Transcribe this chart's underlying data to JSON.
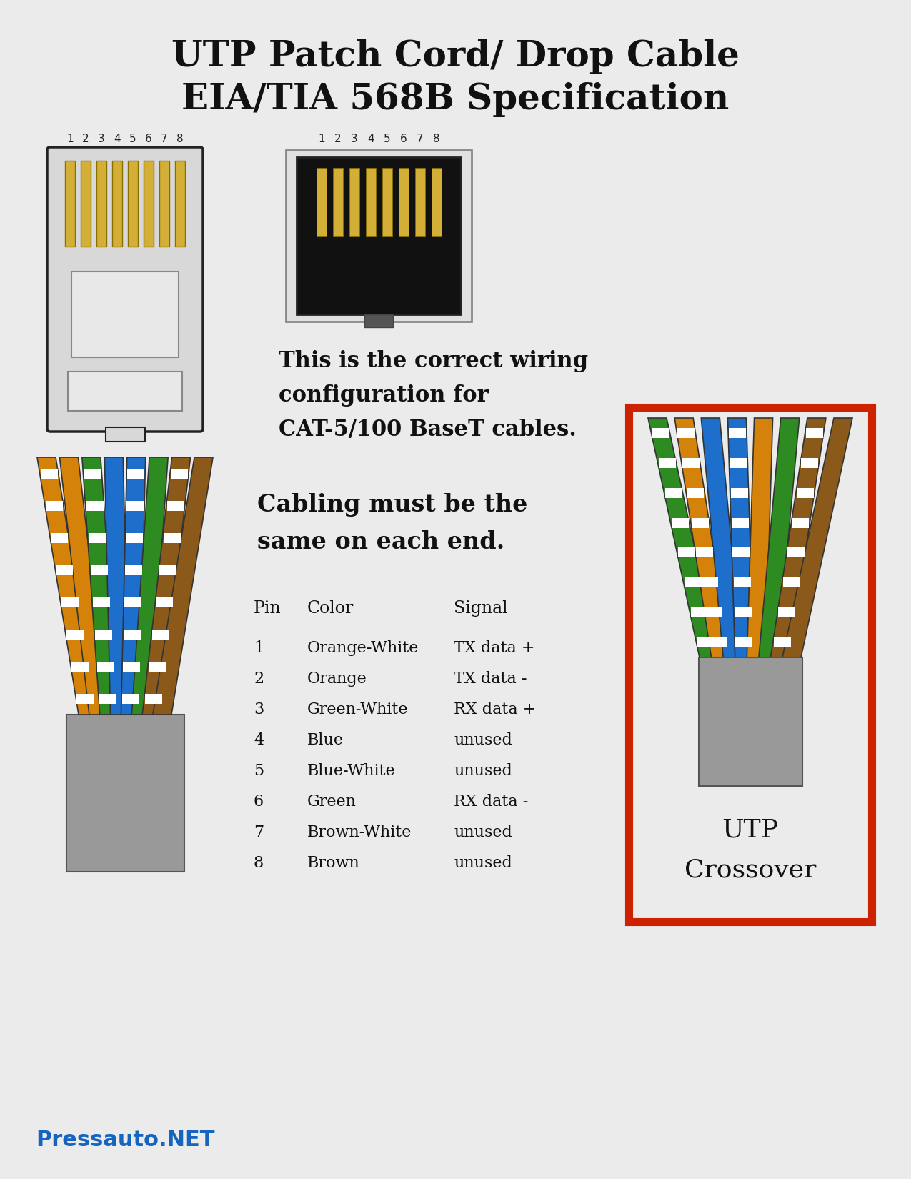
{
  "title_line1": "UTP Patch Cord/ Drop Cable",
  "title_line2": "EIA/TIA 568B Specification",
  "bg_color": "#ebebeb",
  "text_color": "#111111",
  "pin_table": {
    "headers": [
      "Pin",
      "Color",
      "Signal"
    ],
    "rows": [
      [
        "1",
        "Orange-White",
        "TX data +"
      ],
      [
        "2",
        "Orange",
        "TX data -"
      ],
      [
        "3",
        "Green-White",
        "RX data +"
      ],
      [
        "4",
        "Blue",
        "unused"
      ],
      [
        "5",
        "Blue-White",
        "unused"
      ],
      [
        "6",
        "Green",
        "RX data -"
      ],
      [
        "7",
        "Brown-White",
        "unused"
      ],
      [
        "8",
        "Brown",
        "unused"
      ]
    ]
  },
  "crossover_label_line1": "UTP",
  "crossover_label_line2": "Crossover",
  "watermark": "Pressauto.NET",
  "correct_wiring_text_line1": "This is the correct wiring",
  "correct_wiring_text_line2": "configuration for",
  "correct_wiring_text_line3": "CAT-5/100 BaseT cables.",
  "cabling_text_line1": "Cabling must be the",
  "cabling_text_line2": "same on each end.",
  "plug_body_color": "#d8d8d8",
  "plug_edge_color": "#222222",
  "plug_pin_color": "#d4af37",
  "socket_outer_color": "#d8d8d8",
  "socket_inner_color": "#111111",
  "crossover_box_color": "#cc2200",
  "sheath_color": "#999999"
}
